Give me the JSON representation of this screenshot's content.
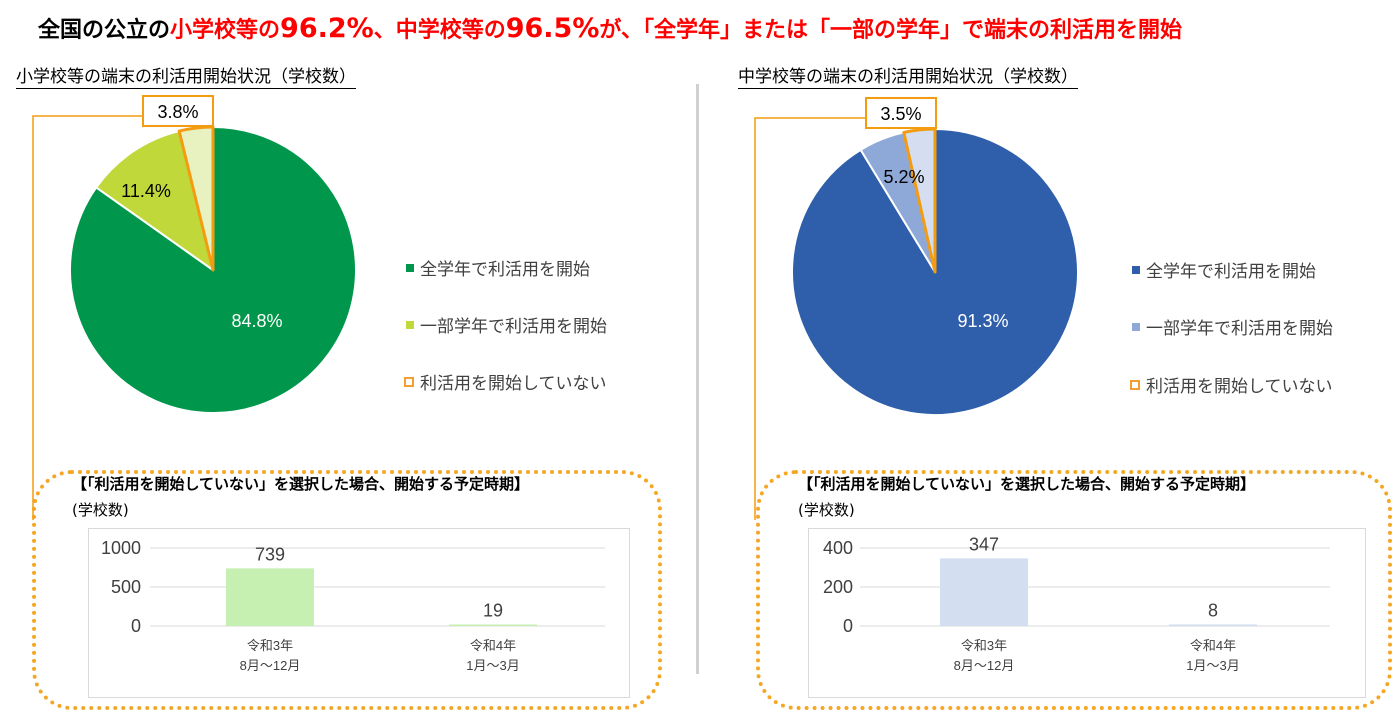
{
  "headline": {
    "part1": "全国の公立の",
    "part2": "小学校等の",
    "part3": "96.2%",
    "part4": "、中学校等の",
    "part5": "96.5%",
    "part6": "が、「全学年」または「一部の学年」で端末の利活用を開始"
  },
  "colors": {
    "headline_red": "#ff0000",
    "elem_all": "#00964b",
    "elem_some": "#c1d83a",
    "elem_bar": "#c6efb2",
    "mid_all": "#2f5fab",
    "mid_some": "#8ea9d8",
    "mid_bar": "#d3dff0",
    "not_started_fill": "#e8f2c0",
    "not_started_fill_mid": "#d4def0",
    "not_started_outline": "#f39c12",
    "dotted_border": "#f5a623"
  },
  "chart_data": [
    {
      "type": "pie",
      "title": "小学校等の端末の利活用開始状況（学校数）",
      "slices": [
        {
          "label": "全学年で利活用を開始",
          "value": 84.8,
          "display": "84.8%"
        },
        {
          "label": "一部学年で利活用を開始",
          "value": 11.4,
          "display": "11.4%"
        },
        {
          "label": "利活用を開始していない",
          "value": 3.8,
          "display": "3.8%"
        }
      ]
    },
    {
      "type": "bar",
      "title": "【「利活用を開始していない」を選択した場合、開始する予定時期】",
      "ylabel": "(学校数)",
      "categories": [
        [
          "令和3年",
          "8月～12月"
        ],
        [
          "令和4年",
          "1月～3月"
        ]
      ],
      "values": [
        739,
        19
      ],
      "ylim": [
        0,
        1000
      ],
      "yticks": [
        0,
        500,
        1000
      ],
      "ytick_labels": [
        "0",
        "500",
        "1000"
      ],
      "grid": true
    },
    {
      "type": "pie",
      "title": "中学校等の端末の利活用開始状況（学校数）",
      "slices": [
        {
          "label": "全学年で利活用を開始",
          "value": 91.3,
          "display": "91.3%"
        },
        {
          "label": "一部学年で利活用を開始",
          "value": 5.2,
          "display": "5.2%"
        },
        {
          "label": "利活用を開始していない",
          "value": 3.5,
          "display": "3.5%"
        }
      ]
    },
    {
      "type": "bar",
      "title": "【「利活用を開始していない」を選択した場合、開始する予定時期】",
      "ylabel": "(学校数)",
      "categories": [
        [
          "令和3年",
          "8月～12月"
        ],
        [
          "令和4年",
          "1月～3月"
        ]
      ],
      "values": [
        347,
        8
      ],
      "ylim": [
        0,
        400
      ],
      "yticks": [
        0,
        200,
        400
      ],
      "ytick_labels": [
        "0",
        "200",
        "400"
      ],
      "grid": true
    }
  ]
}
